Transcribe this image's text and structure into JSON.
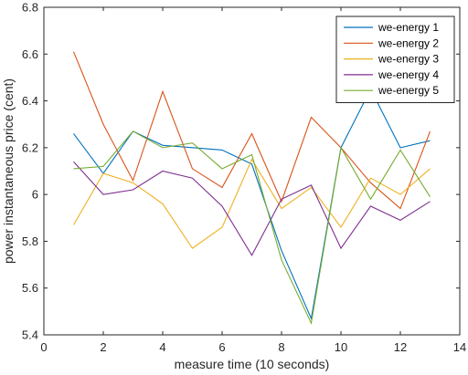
{
  "chart_data": {
    "type": "line",
    "xlabel": "measure time (10 seconds)",
    "ylabel": "power instantaneous price (cent)",
    "xlim": [
      0,
      14
    ],
    "ylim": [
      5.4,
      6.8
    ],
    "xticks": [
      0,
      2,
      4,
      6,
      8,
      10,
      12,
      14
    ],
    "yticks": [
      5.4,
      5.6,
      5.8,
      6,
      6.2,
      6.4,
      6.6,
      6.8
    ],
    "grid": false,
    "legend_position": "top-right",
    "x": [
      1,
      2,
      3,
      4,
      5,
      6,
      7,
      8,
      9,
      10,
      11,
      12,
      13
    ],
    "series": [
      {
        "name": "we-energy 1",
        "color": "#0072BD",
        "values": [
          6.26,
          6.09,
          6.27,
          6.21,
          6.2,
          6.19,
          6.13,
          5.76,
          5.47,
          6.2,
          6.45,
          6.2,
          6.23
        ]
      },
      {
        "name": "we-energy 2",
        "color": "#D95319",
        "values": [
          6.61,
          6.3,
          6.06,
          6.44,
          6.11,
          6.03,
          6.26,
          5.97,
          6.33,
          6.2,
          6.05,
          5.94,
          6.27
        ]
      },
      {
        "name": "we-energy 3",
        "color": "#EDB120",
        "values": [
          5.87,
          6.09,
          6.05,
          5.96,
          5.77,
          5.86,
          6.15,
          5.94,
          6.03,
          5.86,
          6.07,
          6.0,
          6.11
        ]
      },
      {
        "name": "we-energy 4",
        "color": "#7E2F8E",
        "values": [
          6.14,
          6.0,
          6.02,
          6.1,
          6.07,
          5.95,
          5.74,
          5.98,
          6.04,
          5.77,
          5.95,
          5.89,
          5.97
        ]
      },
      {
        "name": "we-energy 5",
        "color": "#77AC30",
        "values": [
          6.11,
          6.12,
          6.27,
          6.2,
          6.22,
          6.11,
          6.17,
          5.72,
          5.45,
          6.2,
          5.98,
          6.19,
          5.99
        ]
      }
    ]
  }
}
